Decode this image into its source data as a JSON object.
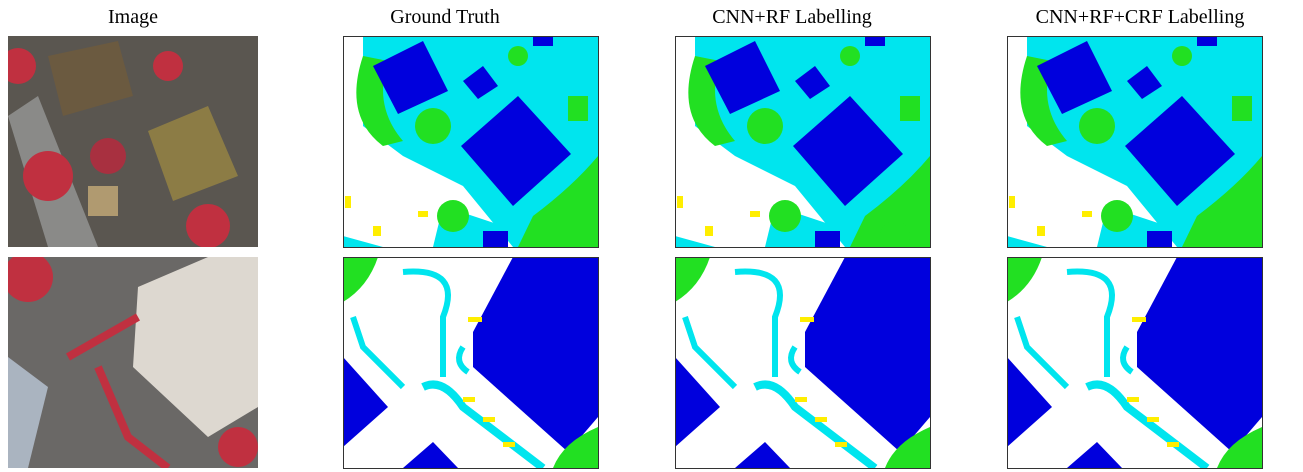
{
  "figure": {
    "columns": [
      "Image",
      "Ground Truth",
      "CNN+RF Labelling",
      "CNN+RF+CRF Labelling"
    ]
  }
}
